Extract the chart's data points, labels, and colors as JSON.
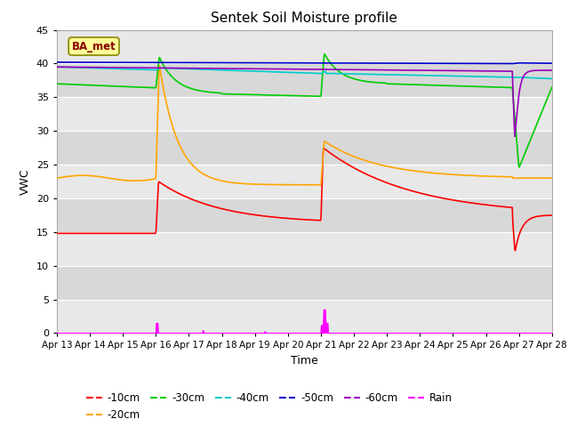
{
  "title": "Sentek Soil Moisture profile",
  "xlabel": "Time",
  "ylabel": "VWC",
  "legend_label": "BA_met",
  "ylim": [
    0,
    45
  ],
  "yticks": [
    0,
    5,
    10,
    15,
    20,
    25,
    30,
    35,
    40,
    45
  ],
  "date_labels": [
    "Apr 13",
    "Apr 14",
    "Apr 15",
    "Apr 16",
    "Apr 17",
    "Apr 18",
    "Apr 19",
    "Apr 20",
    "Apr 21",
    "Apr 22",
    "Apr 23",
    "Apr 24",
    "Apr 25",
    "Apr 26",
    "Apr 27",
    "Apr 28"
  ],
  "line_colors": {
    "10cm": "#ff0000",
    "20cm": "#ffa500",
    "30cm": "#00cc00",
    "40cm": "#00cccc",
    "50cm": "#0000cc",
    "60cm": "#9900bb",
    "rain": "#ff00ff"
  },
  "bg_bands": [
    [
      0,
      5,
      "#e8e8e8"
    ],
    [
      5,
      10,
      "#d8d8d8"
    ],
    [
      10,
      15,
      "#e8e8e8"
    ],
    [
      15,
      20,
      "#d8d8d8"
    ],
    [
      20,
      25,
      "#e8e8e8"
    ],
    [
      25,
      30,
      "#d8d8d8"
    ],
    [
      30,
      35,
      "#e8e8e8"
    ],
    [
      35,
      40,
      "#d8d8d8"
    ],
    [
      40,
      45,
      "#e8e8e8"
    ]
  ]
}
